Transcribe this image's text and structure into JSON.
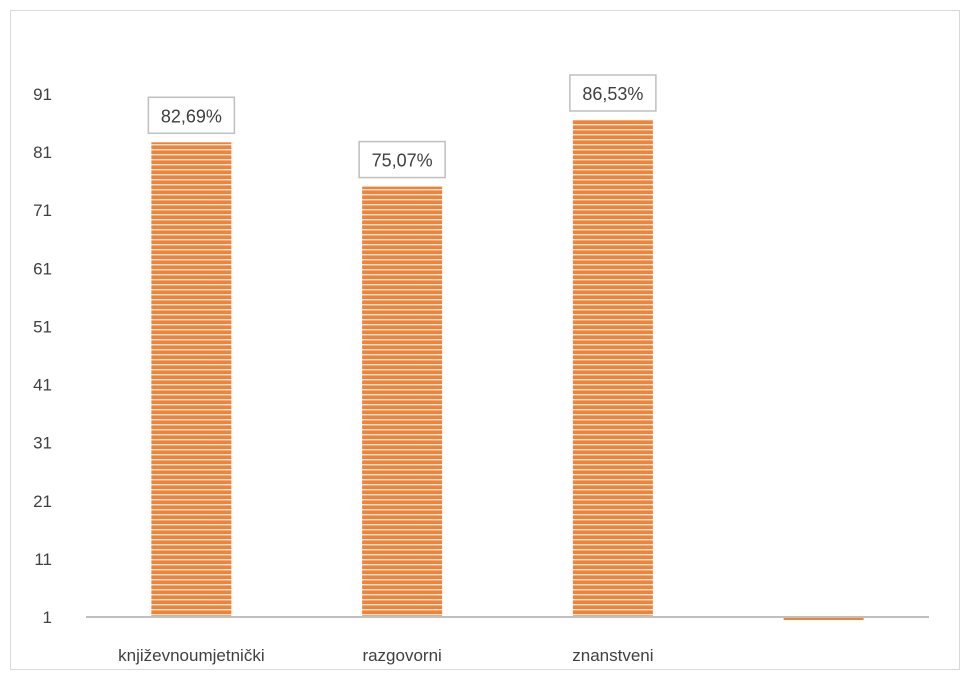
{
  "colors": {
    "bar": "#f0833a",
    "bar_stripe": "#ffffff",
    "axis": "#bfbfbf",
    "label_border": "#bfbfbf",
    "text": "#404040"
  },
  "chart_data": {
    "type": "bar",
    "categories": [
      "književnoumjetnički",
      "razgovorni",
      "znanstveni",
      ""
    ],
    "values": [
      82.69,
      75.07,
      86.53,
      0
    ],
    "value_labels": [
      "82,69%",
      "75,07%",
      "86,53%",
      ""
    ],
    "y_ticks": [
      "91",
      "81",
      "71",
      "61",
      "51",
      "41",
      "31",
      "21",
      "11",
      "1"
    ],
    "ylim": [
      1,
      91
    ],
    "bar_pattern": "horizontal-stripes",
    "gridlines": false,
    "legend": "none"
  }
}
